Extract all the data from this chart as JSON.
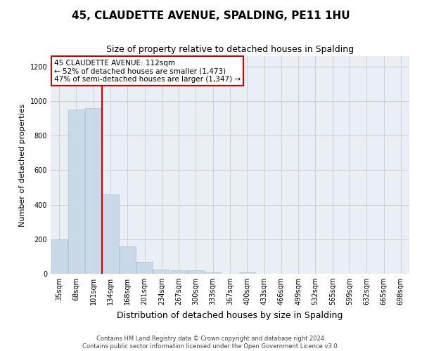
{
  "title": "45, CLAUDETTE AVENUE, SPALDING, PE11 1HU",
  "subtitle": "Size of property relative to detached houses in Spalding",
  "xlabel": "Distribution of detached houses by size in Spalding",
  "ylabel": "Number of detached properties",
  "footer_line1": "Contains HM Land Registry data © Crown copyright and database right 2024.",
  "footer_line2": "Contains public sector information licensed under the Open Government Licence v3.0.",
  "annotation_line1": "45 CLAUDETTE AVENUE: 112sqm",
  "annotation_line2": "← 52% of detached houses are smaller (1,473)",
  "annotation_line3": "47% of semi-detached houses are larger (1,347) →",
  "bar_color": "#c9d9e8",
  "bar_edge_color": "#a8c0d4",
  "red_line_color": "#cc0000",
  "red_line_x": 2.5,
  "categories": [
    "35sqm",
    "68sqm",
    "101sqm",
    "134sqm",
    "168sqm",
    "201sqm",
    "234sqm",
    "267sqm",
    "300sqm",
    "333sqm",
    "367sqm",
    "400sqm",
    "433sqm",
    "466sqm",
    "499sqm",
    "532sqm",
    "565sqm",
    "599sqm",
    "632sqm",
    "665sqm",
    "698sqm"
  ],
  "values": [
    200,
    950,
    960,
    460,
    160,
    70,
    25,
    20,
    20,
    10,
    0,
    10,
    0,
    0,
    0,
    0,
    0,
    0,
    0,
    0,
    0
  ],
  "ylim": [
    0,
    1260
  ],
  "yticks": [
    0,
    200,
    400,
    600,
    800,
    1000,
    1200
  ],
  "grid_color": "#cccccc",
  "background_color": "#eaeef5",
  "annotation_box_facecolor": "#ffffff",
  "annotation_box_edgecolor": "#cc0000",
  "title_fontsize": 11,
  "subtitle_fontsize": 9,
  "ylabel_fontsize": 8,
  "xlabel_fontsize": 9,
  "tick_fontsize": 7,
  "annotation_fontsize": 7.5,
  "footer_fontsize": 6
}
